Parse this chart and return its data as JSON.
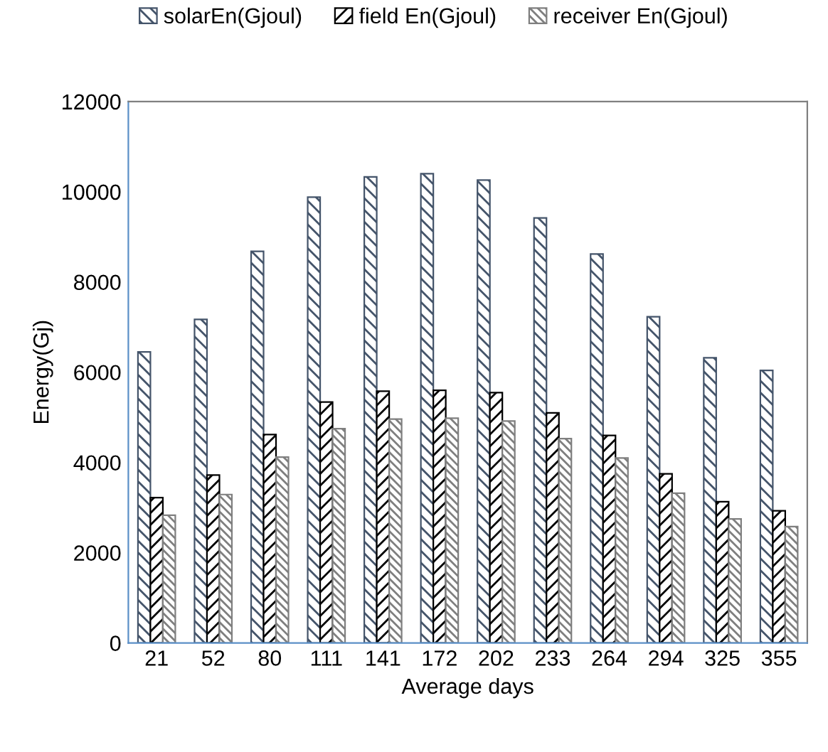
{
  "chart_data": {
    "type": "bar",
    "xlabel": "Average days",
    "ylabel": "Energy(Gj)",
    "categories": [
      "21",
      "52",
      "80",
      "111",
      "141",
      "172",
      "202",
      "233",
      "264",
      "294",
      "325",
      "355"
    ],
    "series": [
      {
        "name": "solarEn(Gjoul)",
        "color": "#44546a",
        "values": [
          6450,
          7170,
          8680,
          9880,
          10330,
          10400,
          10260,
          9420,
          8620,
          7230,
          6320,
          6040
        ]
      },
      {
        "name": "field En(Gjoul)",
        "color": "#000000",
        "values": [
          3220,
          3720,
          4620,
          5340,
          5580,
          5600,
          5550,
          5100,
          4600,
          3750,
          3130,
          2930
        ]
      },
      {
        "name": "receiver En(Gjoul)",
        "color": "#7f7f7f",
        "values": [
          2830,
          3290,
          4120,
          4750,
          4960,
          4980,
          4920,
          4530,
          4100,
          3320,
          2750,
          2580
        ]
      }
    ],
    "ylim": [
      0,
      12000
    ],
    "yticks": [
      0,
      2000,
      4000,
      6000,
      8000,
      10000,
      12000
    ],
    "grid": false,
    "legend": "top"
  }
}
